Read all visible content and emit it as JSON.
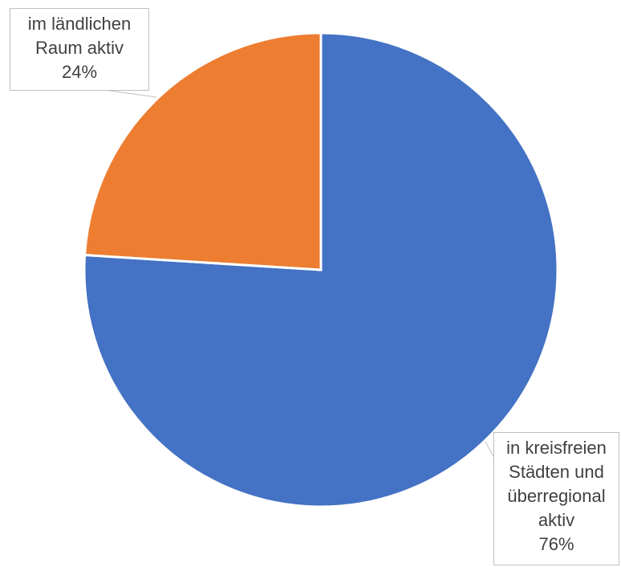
{
  "chart_data": {
    "type": "pie",
    "categories": [
      "in kreisfreien Städten und überregional aktiv",
      "im ländlichen Raum aktiv"
    ],
    "values": [
      76,
      24
    ],
    "value_labels": [
      "76%",
      "24%"
    ],
    "colors": [
      "#4472c4",
      "#ed7d31"
    ]
  }
}
